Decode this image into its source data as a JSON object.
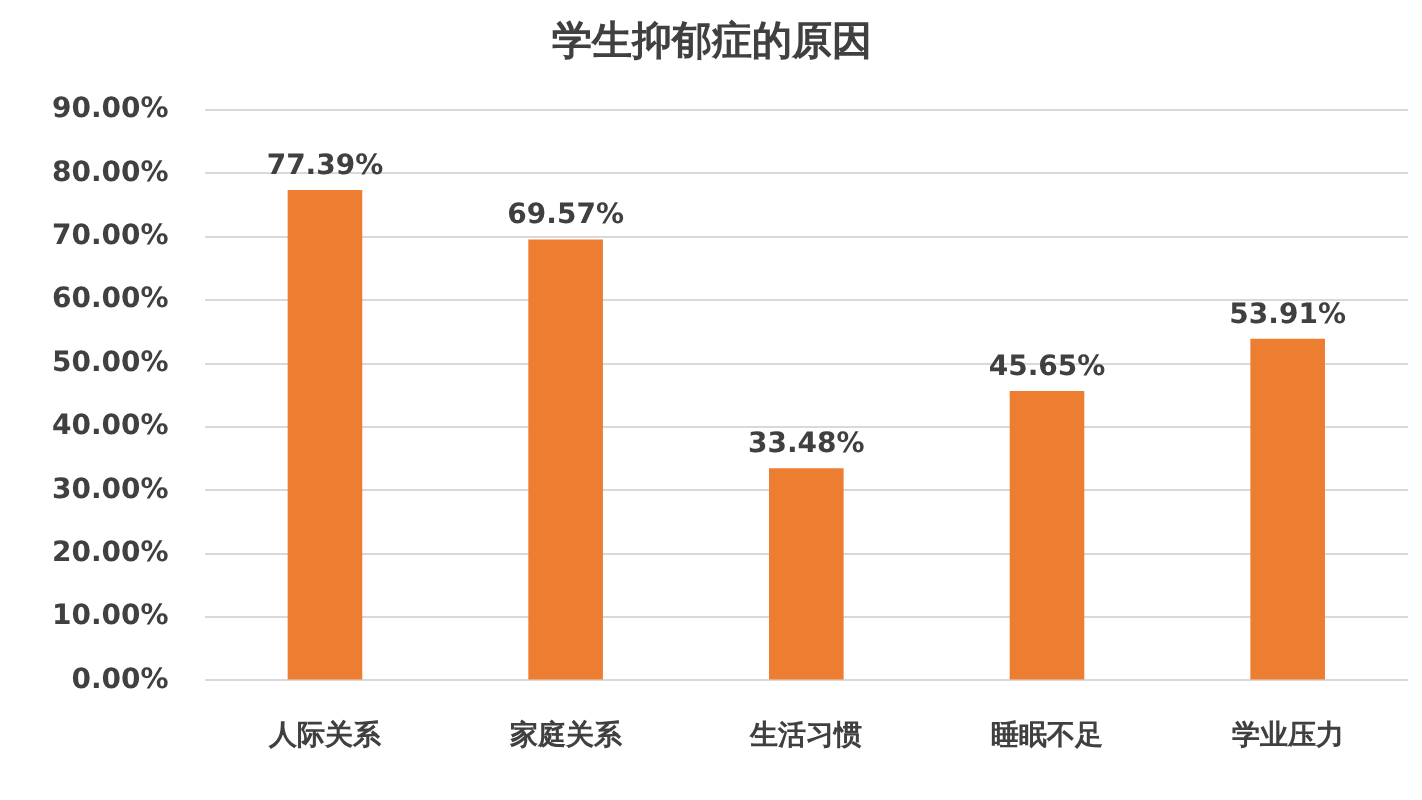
{
  "chart_data": {
    "type": "bar",
    "title": "学生抑郁症的原因",
    "categories": [
      "人际关系",
      "家庭关系",
      "生活习惯",
      "睡眠不足",
      "学业压力"
    ],
    "values": [
      77.39,
      69.57,
      33.48,
      45.65,
      53.91
    ],
    "value_labels": [
      "77.39%",
      "69.57%",
      "33.48%",
      "45.65%",
      "53.91%"
    ],
    "color": "#ed7d31",
    "ylim": [
      0,
      90
    ],
    "yticks": [
      {
        "value": 0,
        "label": "0.00%"
      },
      {
        "value": 10,
        "label": "10.00%"
      },
      {
        "value": 20,
        "label": "20.00%"
      },
      {
        "value": 30,
        "label": "30.00%"
      },
      {
        "value": 40,
        "label": "40.00%"
      },
      {
        "value": 50,
        "label": "50.00%"
      },
      {
        "value": 60,
        "label": "60.00%"
      },
      {
        "value": 70,
        "label": "70.00%"
      },
      {
        "value": 80,
        "label": "80.00%"
      },
      {
        "value": 90,
        "label": "90.00%"
      }
    ],
    "grid": "y"
  }
}
